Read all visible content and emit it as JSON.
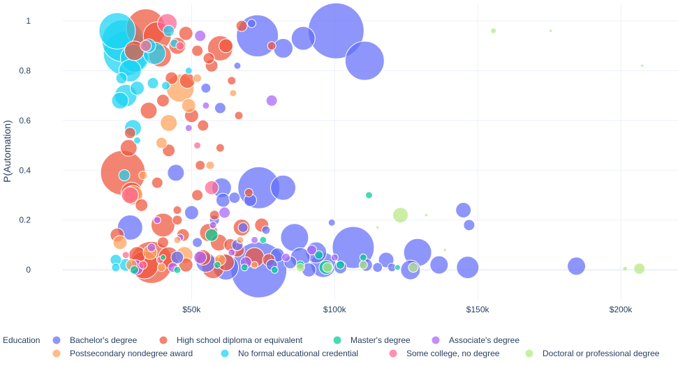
{
  "chart_data": {
    "type": "scatter",
    "variant": "bubble",
    "xlabel": "",
    "ylabel": "P(Automation)",
    "xlim": [
      5000,
      220000
    ],
    "ylim": [
      -0.12,
      1.07
    ],
    "x_ticks": [
      {
        "value": 50000,
        "label": "$50k"
      },
      {
        "value": 100000,
        "label": "$100k"
      },
      {
        "value": 150000,
        "label": "$150k"
      },
      {
        "value": 200000,
        "label": "$200k"
      }
    ],
    "y_ticks": [
      {
        "value": 0,
        "label": "0"
      },
      {
        "value": 0.2,
        "label": "0.2"
      },
      {
        "value": 0.4,
        "label": "0.4"
      },
      {
        "value": 0.6,
        "label": "0.6"
      },
      {
        "value": 0.8,
        "label": "0.8"
      },
      {
        "value": 1,
        "label": "1"
      }
    ],
    "grid": true,
    "legend": {
      "title": "Education",
      "placement": "bottom"
    },
    "series": [
      {
        "name": "Bachelor's degree",
        "color": "#636efa",
        "points": [
          [
            100500,
            0.96,
            40
          ],
          [
            73000,
            0.94,
            30
          ],
          [
            110500,
            0.84,
            28
          ],
          [
            89000,
            0.93,
            17
          ],
          [
            82000,
            0.89,
            14
          ],
          [
            73500,
            0.33,
            30
          ],
          [
            82000,
            0.33,
            18
          ],
          [
            106500,
            0.09,
            30
          ],
          [
            73500,
            0.0,
            40
          ],
          [
            86000,
            0.13,
            20
          ],
          [
            93500,
            0.07,
            15
          ],
          [
            129000,
            0.07,
            20
          ],
          [
            145000,
            0.24,
            11
          ],
          [
            147000,
            0.18,
            8
          ],
          [
            184500,
            0.015,
            13
          ],
          [
            146500,
            0.01,
            16
          ],
          [
            136500,
            0.02,
            13
          ],
          [
            118000,
            0.04,
            11
          ],
          [
            126500,
            0.0,
            14
          ],
          [
            111000,
            0.02,
            9
          ],
          [
            96000,
            0.02,
            18
          ],
          [
            88000,
            0.05,
            14
          ],
          [
            80000,
            0.06,
            10
          ],
          [
            60500,
            0.33,
            14
          ],
          [
            61000,
            0.28,
            10
          ],
          [
            50000,
            0.23,
            10
          ],
          [
            28500,
            0.17,
            18
          ],
          [
            44500,
            0.39,
            12
          ],
          [
            70500,
            0.28,
            9
          ],
          [
            65000,
            0.29,
            8
          ],
          [
            62000,
            0.01,
            18
          ],
          [
            55000,
            0.03,
            14
          ],
          [
            45000,
            0.05,
            9
          ],
          [
            52000,
            0.11,
            7
          ],
          [
            68000,
            0.17,
            7
          ],
          [
            115000,
            0.01,
            7
          ],
          [
            102000,
            0.01,
            9
          ],
          [
            91000,
            0.0,
            10
          ],
          [
            78000,
            0.02,
            8
          ],
          [
            66000,
            0.1,
            8
          ],
          [
            58000,
            0.2,
            7
          ],
          [
            76000,
            0.16,
            6
          ],
          [
            99000,
            0.19,
            5
          ],
          [
            84500,
            0.03,
            9
          ],
          [
            120000,
            0.01,
            6
          ],
          [
            60000,
            0.65,
            8
          ],
          [
            55000,
            0.73,
            7
          ],
          [
            71000,
            0.99,
            6
          ],
          [
            66000,
            0.82,
            5
          ]
        ]
      },
      {
        "name": "High school diploma or equivalent",
        "color": "#ef553b",
        "points": [
          [
            34000,
            0.97,
            28
          ],
          [
            38000,
            0.94,
            20
          ],
          [
            30000,
            0.88,
            14
          ],
          [
            39000,
            0.86,
            16
          ],
          [
            45000,
            0.9,
            12
          ],
          [
            48000,
            0.95,
            10
          ],
          [
            52000,
            0.88,
            8
          ],
          [
            60000,
            0.89,
            18
          ],
          [
            62000,
            0.9,
            10
          ],
          [
            57000,
            0.82,
            9
          ],
          [
            35000,
            0.64,
            12
          ],
          [
            40000,
            0.68,
            9
          ],
          [
            28000,
            0.49,
            12
          ],
          [
            26000,
            0.39,
            32
          ],
          [
            29000,
            0.31,
            15
          ],
          [
            38000,
            0.35,
            8
          ],
          [
            42000,
            0.48,
            9
          ],
          [
            36000,
            0.03,
            30
          ],
          [
            33500,
            0.02,
            20
          ],
          [
            40000,
            0.18,
            17
          ],
          [
            31000,
            0.06,
            12
          ],
          [
            42000,
            0.05,
            15
          ],
          [
            56000,
            0.15,
            13
          ],
          [
            59500,
            0.11,
            12
          ],
          [
            67500,
            0.17,
            12
          ],
          [
            57500,
            0.01,
            16
          ],
          [
            72000,
            0.05,
            14
          ],
          [
            66000,
            0.08,
            10
          ],
          [
            63500,
            0.1,
            9
          ],
          [
            48000,
            0.02,
            10
          ],
          [
            47000,
            0.14,
            9
          ],
          [
            54000,
            0.05,
            11
          ],
          [
            62000,
            0.03,
            12
          ],
          [
            52000,
            0.3,
            8
          ],
          [
            58000,
            0.22,
            7
          ],
          [
            74500,
            0.18,
            10
          ],
          [
            77000,
            0.04,
            9
          ],
          [
            45000,
            0.24,
            6
          ],
          [
            50000,
            0.62,
            10
          ],
          [
            54000,
            0.58,
            8
          ],
          [
            60000,
            0.49,
            6
          ],
          [
            43000,
            0.77,
            9
          ],
          [
            48500,
            0.76,
            11
          ],
          [
            56000,
            0.85,
            8
          ],
          [
            67500,
            0.98,
            8
          ],
          [
            64000,
            0.76,
            6
          ],
          [
            28500,
            0.55,
            8
          ],
          [
            32500,
            0.26,
            9
          ],
          [
            24000,
            0.14,
            10
          ],
          [
            40000,
            0.11,
            8
          ],
          [
            45000,
            0.2,
            7
          ],
          [
            70000,
            0.31,
            6
          ],
          [
            53000,
            0.42,
            7
          ],
          [
            66500,
            0.62,
            6
          ],
          [
            78000,
            0.9,
            6
          ]
        ]
      },
      {
        "name": "Master's degree",
        "color": "#00cc96",
        "points": [
          [
            112000,
            0.3,
            5
          ],
          [
            57000,
            0.14,
            9
          ],
          [
            97000,
            0.01,
            10
          ],
          [
            94500,
            0.06,
            6
          ],
          [
            88000,
            0.02,
            6
          ],
          [
            79000,
            0.0,
            5
          ],
          [
            68500,
            0.01,
            5
          ],
          [
            59000,
            0.02,
            5
          ],
          [
            102000,
            0.02,
            6
          ],
          [
            110000,
            0.05,
            5
          ],
          [
            30000,
            0.0,
            6
          ],
          [
            45000,
            0.0,
            5
          ],
          [
            122000,
            0.01,
            4
          ],
          [
            75000,
            0.12,
            5
          ],
          [
            40000,
            0.05,
            4
          ]
        ]
      },
      {
        "name": "Associate's degree",
        "color": "#ab63fa",
        "points": [
          [
            78000,
            0.68,
            8
          ],
          [
            30500,
            0.01,
            11
          ],
          [
            49000,
            0.57,
            5
          ],
          [
            53000,
            0.94,
            8
          ],
          [
            53000,
            0.05,
            9
          ],
          [
            43500,
            0.01,
            7
          ],
          [
            61500,
            0.23,
            8
          ],
          [
            55000,
            0.66,
            5
          ],
          [
            57500,
            0.18,
            5
          ],
          [
            69000,
            0.03,
            8
          ],
          [
            83000,
            0.05,
            6
          ],
          [
            92000,
            0.08,
            7
          ],
          [
            100000,
            0.05,
            5
          ],
          [
            38000,
            0.2,
            5
          ],
          [
            46000,
            0.13,
            5
          ],
          [
            72000,
            0.12,
            5
          ],
          [
            36000,
            0.09,
            6
          ],
          [
            64000,
            0.07,
            5
          ]
        ]
      },
      {
        "name": "Postsecondary nondegree award",
        "color": "#ffa15a",
        "points": [
          [
            46000,
            0.73,
            20
          ],
          [
            49000,
            0.66,
            10
          ],
          [
            42000,
            0.59,
            12
          ],
          [
            39500,
            0.51,
            8
          ],
          [
            29500,
            0.3,
            14
          ],
          [
            25000,
            0.11,
            10
          ],
          [
            47500,
            0.06,
            12
          ],
          [
            56500,
            0.42,
            6
          ],
          [
            35500,
            0.07,
            10
          ],
          [
            29000,
            0.02,
            8
          ],
          [
            39500,
            0.01,
            6
          ],
          [
            60000,
            0.04,
            8
          ],
          [
            64500,
            0.71,
            5
          ],
          [
            52000,
            0.77,
            6
          ],
          [
            33000,
            0.38,
            6
          ],
          [
            45000,
            0.12,
            5
          ],
          [
            72000,
            0.02,
            5
          ],
          [
            67000,
            0.12,
            5
          ]
        ]
      },
      {
        "name": "No formal educational credential",
        "color": "#19d3f3",
        "points": [
          [
            24000,
            0.96,
            26
          ],
          [
            26000,
            0.92,
            30
          ],
          [
            27000,
            0.87,
            32
          ],
          [
            30000,
            0.85,
            20
          ],
          [
            28500,
            0.8,
            16
          ],
          [
            37000,
            0.87,
            16
          ],
          [
            35000,
            0.9,
            10
          ],
          [
            27000,
            0.7,
            16
          ],
          [
            25000,
            0.68,
            12
          ],
          [
            29500,
            0.57,
            12
          ],
          [
            31000,
            0.73,
            10
          ],
          [
            36500,
            0.75,
            8
          ],
          [
            25500,
            0.77,
            8
          ],
          [
            26500,
            0.38,
            8
          ],
          [
            23500,
            0.04,
            8
          ],
          [
            27000,
            0.02,
            9
          ],
          [
            42000,
            0.96,
            8
          ],
          [
            44000,
            0.91,
            6
          ],
          [
            41000,
            0.74,
            6
          ],
          [
            31000,
            0.52,
            5
          ],
          [
            49000,
            0.8,
            5
          ],
          [
            23500,
            0.01,
            6
          ]
        ]
      },
      {
        "name": "Some college, no degree",
        "color": "#ff6692",
        "points": [
          [
            41500,
            0.99,
            14
          ],
          [
            28500,
            0.3,
            12
          ],
          [
            57000,
            0.33,
            10
          ],
          [
            34000,
            0.9,
            8
          ],
          [
            46000,
            0.9,
            6
          ],
          [
            33000,
            0.02,
            6
          ],
          [
            39000,
            0.04,
            5
          ],
          [
            27000,
            0.06,
            5
          ],
          [
            52000,
            0.5,
            5
          ]
        ]
      },
      {
        "name": "Doctoral or professional degree",
        "color": "#b6e880",
        "points": [
          [
            123000,
            0.22,
            11
          ],
          [
            206500,
            0.005,
            8
          ],
          [
            155500,
            0.96,
            4
          ],
          [
            175500,
            0.96,
            2
          ],
          [
            207500,
            0.82,
            2
          ],
          [
            127500,
            0.01,
            7
          ],
          [
            110000,
            0.02,
            6
          ],
          [
            97500,
            0.01,
            7
          ],
          [
            88000,
            0.01,
            6
          ],
          [
            201500,
            0.005,
            3
          ],
          [
            132000,
            0.22,
            2
          ],
          [
            115000,
            0.17,
            2
          ],
          [
            138500,
            0.08,
            2
          ]
        ]
      }
    ]
  }
}
